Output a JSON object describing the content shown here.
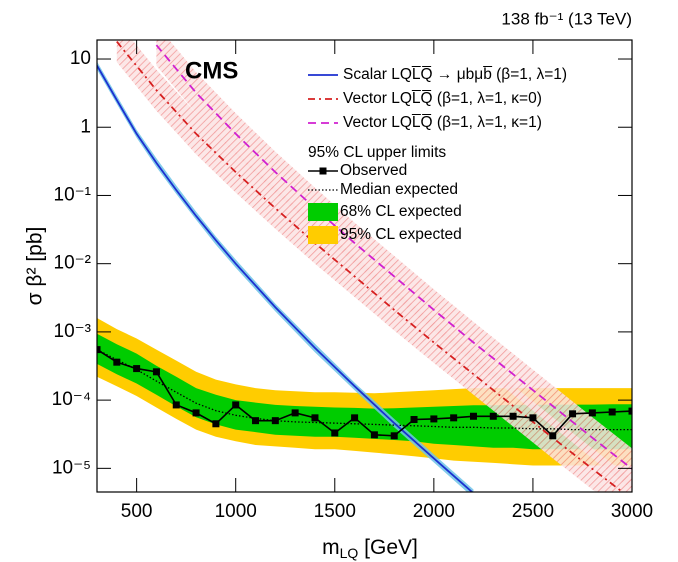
{
  "chart_data": {
    "type": "line",
    "yscale": "log",
    "lumi": "138 fb⁻¹ (13 TeV)",
    "experiment": "CMS",
    "xlabel": [
      "m",
      "LQ",
      " [GeV]"
    ],
    "ylabel": "σ β² [pb]",
    "xlim": [
      300,
      3000
    ],
    "xticks": [
      500,
      1000,
      1500,
      2000,
      2500,
      3000
    ],
    "ylim": [
      4.5e-06,
      19
    ],
    "yticks": [
      10,
      1,
      {
        "value": 0.1,
        "label": "10⁻¹"
      },
      {
        "value": 0.01,
        "label": "10⁻²"
      },
      {
        "value": 0.001,
        "label": "10⁻³"
      },
      {
        "value": 0.0001,
        "label": "10⁻⁴"
      },
      {
        "value": 1e-05,
        "label": "10⁻⁵"
      }
    ],
    "theory": [
      {
        "name": "Scalar LQL̅Q̅ → μbμb̅ (β=1, λ=1)",
        "color": "#1c2fd0",
        "dash": "solid",
        "band_color": "#6fc3e8",
        "x": [
          300,
          400,
          500,
          600,
          700,
          800,
          900,
          1000,
          1200,
          1400,
          1600,
          1800,
          2000,
          2200
        ],
        "values": [
          8,
          2.5,
          0.8,
          0.3,
          0.12,
          0.05,
          0.022,
          0.01,
          0.0023,
          0.00058,
          0.00016,
          4.6e-05,
          1.4e-05,
          4.3e-06
        ],
        "band_lower": [
          7,
          2.2,
          0.7,
          0.26,
          0.105,
          0.044,
          0.019,
          0.0087,
          0.002,
          0.0005,
          0.00014,
          4e-05,
          1.22e-05,
          3.7e-06
        ],
        "band_upper": [
          9.2,
          2.9,
          0.92,
          0.35,
          0.14,
          0.058,
          0.025,
          0.0115,
          0.0026,
          0.00067,
          0.00018,
          5.3e-05,
          1.6e-05,
          4.9e-06
        ]
      },
      {
        "name": "Vector LQL̅Q̅ (β=1, λ=1, κ=0)",
        "color": "#d62020",
        "dash": "dashdot",
        "band_color": "#f08a8a",
        "x": [
          400,
          600,
          800,
          1000,
          1200,
          1400,
          1600,
          1800,
          2000,
          2200,
          2400,
          2600,
          2800,
          3000
        ],
        "values": [
          18,
          3.5,
          0.8,
          0.22,
          0.065,
          0.02,
          0.0065,
          0.0021,
          0.0007,
          0.00024,
          8.2e-05,
          2.8e-05,
          9.8e-06,
          3.5e-06
        ],
        "band_lower": [
          9,
          1.75,
          0.4,
          0.11,
          0.0325,
          0.01,
          0.00325,
          0.00105,
          0.00035,
          0.00012,
          4.1e-05,
          1.4e-05,
          4.9e-06,
          1.75e-06
        ],
        "band_upper": [
          36,
          7,
          1.6,
          0.44,
          0.13,
          0.04,
          0.013,
          0.0042,
          0.0014,
          0.00048,
          0.000164,
          5.6e-05,
          1.96e-05,
          7e-06
        ]
      },
      {
        "name": "Vector LQL̅Q̅ (β=1, λ=1, κ=1)",
        "color": "#d020d0",
        "dash": "dashed",
        "band_color": "#f08a8a",
        "x": [
          600,
          800,
          1000,
          1200,
          1400,
          1600,
          1800,
          2000,
          2200,
          2400,
          2600,
          2800,
          3000
        ],
        "values": [
          16,
          3.2,
          0.8,
          0.22,
          0.065,
          0.02,
          0.0065,
          0.0021,
          0.0007,
          0.00024,
          8.2e-05,
          2.8e-05,
          9.8e-06
        ],
        "band_lower": [
          8,
          1.6,
          0.4,
          0.11,
          0.0325,
          0.01,
          0.00325,
          0.00105,
          0.00035,
          0.00012,
          4.1e-05,
          1.4e-05,
          4.9e-06
        ],
        "band_upper": [
          32,
          6.4,
          1.6,
          0.44,
          0.13,
          0.04,
          0.013,
          0.0042,
          0.0014,
          0.00048,
          0.000164,
          5.6e-05,
          1.96e-05
        ]
      }
    ],
    "limits": {
      "title": "95% CL upper limits",
      "x": [
        300,
        400,
        500,
        600,
        700,
        800,
        900,
        1000,
        1100,
        1200,
        1300,
        1400,
        1500,
        1600,
        1700,
        1800,
        1900,
        2000,
        2100,
        2200,
        2300,
        2400,
        2500,
        2600,
        2700,
        2800,
        2900,
        3000
      ],
      "observed": {
        "name": "Observed",
        "color": "#000000",
        "values": [
          0.00055,
          0.00036,
          0.00029,
          0.00026,
          8.5e-05,
          6.5e-05,
          4.5e-05,
          8.5e-05,
          5e-05,
          5e-05,
          6.5e-05,
          5.5e-05,
          3.3e-05,
          5.5e-05,
          3.1e-05,
          3e-05,
          5.2e-05,
          5.3e-05,
          5.5e-05,
          5.8e-05,
          5.8e-05,
          5.8e-05,
          5.5e-05,
          3e-05,
          6.3e-05,
          6.5e-05,
          6.7e-05,
          6.9e-05
        ]
      },
      "median": {
        "name": "Median expected",
        "color": "#000000",
        "values": [
          0.00055,
          0.00039,
          0.00028,
          0.00019,
          0.00013,
          9e-05,
          7e-05,
          6e-05,
          5.4e-05,
          5e-05,
          4.8e-05,
          4.7e-05,
          4.6e-05,
          4.5e-05,
          4.4e-05,
          4.3e-05,
          4.2e-05,
          4.1e-05,
          4e-05,
          4e-05,
          3.9e-05,
          3.9e-05,
          3.8e-05,
          3.8e-05,
          3.7e-05,
          3.7e-05,
          3.7e-05,
          3.7e-05
        ]
      },
      "band68": {
        "name": "68% CL expected",
        "color": "#00cc00",
        "lower": [
          0.00034,
          0.00024,
          0.000175,
          0.00012,
          8.1e-05,
          5.6e-05,
          4.4e-05,
          3.7e-05,
          3.4e-05,
          3.1e-05,
          3e-05,
          2.9e-05,
          2.9e-05,
          2.8e-05,
          2.7e-05,
          2.6e-05,
          2.5e-05,
          2.3e-05,
          2.2e-05,
          2.1e-05,
          2e-05,
          2e-05,
          1.9e-05,
          1.9e-05,
          1.9e-05,
          1.9e-05,
          1.9e-05,
          1.9e-05
        ],
        "upper": [
          0.00094,
          0.00066,
          0.00048,
          0.00032,
          0.00022,
          0.00015,
          0.00012,
          0.0001,
          9.2e-05,
          8.5e-05,
          8.2e-05,
          8e-05,
          7.8e-05,
          7.7e-05,
          7.5e-05,
          7.6e-05,
          7.8e-05,
          8e-05,
          8.2e-05,
          8.4e-05,
          8.4e-05,
          8.5e-05,
          8.5e-05,
          8.6e-05,
          8.6e-05,
          8.6e-05,
          8.7e-05,
          8.7e-05
        ]
      },
      "band95": {
        "name": "95% CL expected",
        "color": "#ffcc00",
        "lower": [
          0.00022,
          0.00016,
          0.000115,
          7.8e-05,
          5.3e-05,
          3.7e-05,
          2.9e-05,
          2.5e-05,
          2.2e-05,
          2.1e-05,
          2e-05,
          1.9e-05,
          1.9e-05,
          1.8e-05,
          1.7e-05,
          1.6e-05,
          1.5e-05,
          1.4e-05,
          1.3e-05,
          1.25e-05,
          1.2e-05,
          1.15e-05,
          1.1e-05,
          1.1e-05,
          1.1e-05,
          1.1e-05,
          1.1e-05,
          1.1e-05
        ],
        "upper": [
          0.0016,
          0.0011,
          0.0008,
          0.00055,
          0.00038,
          0.00026,
          0.0002,
          0.00017,
          0.00015,
          0.00014,
          0.000135,
          0.00013,
          0.00013,
          0.000128,
          0.000126,
          0.00013,
          0.000135,
          0.00014,
          0.000145,
          0.00015,
          0.00015,
          0.00015,
          0.00015,
          0.00015,
          0.00015,
          0.00015,
          0.00015,
          0.00015
        ]
      }
    }
  }
}
